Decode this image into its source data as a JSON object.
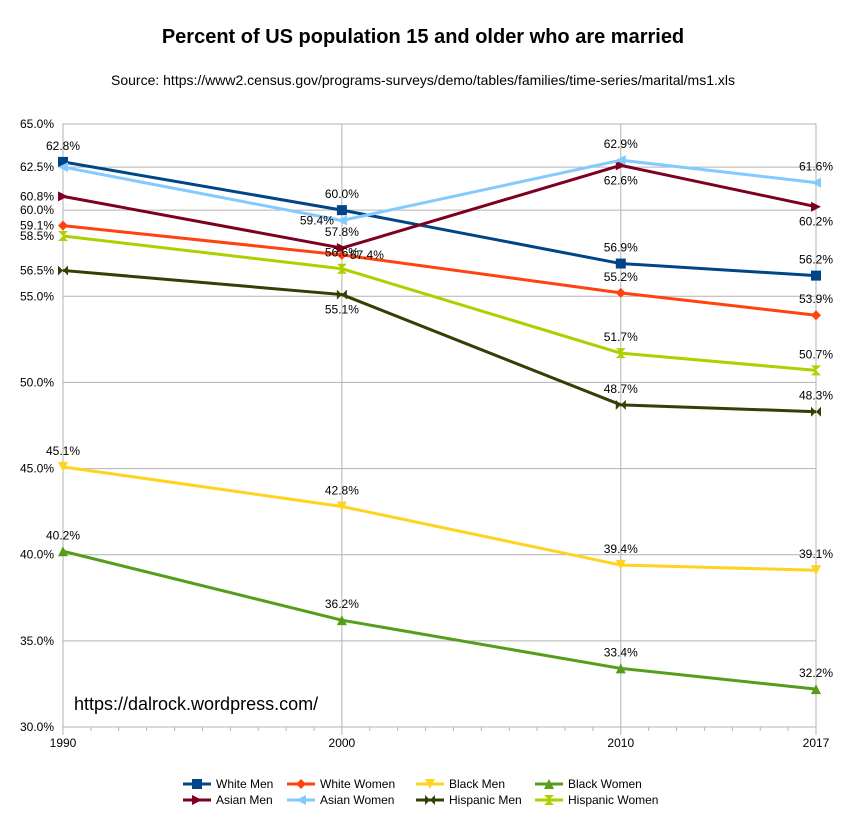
{
  "chart_data": {
    "type": "line",
    "title": "Percent of US population 15 and older who are married",
    "subtitle": "Source:  https://www2.census.gov/programs-surveys/demo/tables/families/time-series/marital/ms1.xls",
    "watermark": "https://dalrock.wordpress.com/",
    "xlabel": "",
    "ylabel": "",
    "x": [
      1990,
      2000,
      2010,
      2017
    ],
    "x_tick_labels": [
      "1990",
      "2000",
      "2010",
      "2017"
    ],
    "xlim": [
      1990,
      2017
    ],
    "ylim": [
      30,
      65
    ],
    "y_ticks": [
      30,
      35,
      40,
      45,
      50,
      55,
      60,
      62.5,
      65
    ],
    "y_tick_labels": [
      "30.0%",
      "35.0%",
      "40.0%",
      "45.0%",
      "50.0%",
      "55.0%",
      "60.0%",
      "62.5%",
      "65.0%"
    ],
    "extra_y_labels": [
      {
        "value": 60.8,
        "text": "60.8%"
      },
      {
        "value": 59.1,
        "text": "59.1%"
      },
      {
        "value": 58.5,
        "text": "58.5%"
      },
      {
        "value": 56.5,
        "text": "56.5%"
      }
    ],
    "grid": true,
    "legend_position": "bottom",
    "series": [
      {
        "name": "White Men",
        "color": "#004586",
        "marker": "square",
        "values": [
          62.8,
          60.0,
          56.9,
          56.2
        ],
        "labels": [
          "62.8%",
          "60.0%",
          "56.9%",
          "56.2%"
        ],
        "label_pos": [
          "above",
          "above",
          "above",
          "above"
        ]
      },
      {
        "name": "White Women",
        "color": "#ff420e",
        "marker": "diamond",
        "values": [
          59.1,
          57.4,
          55.2,
          53.9
        ],
        "labels": [
          "",
          "57.4%",
          "55.2%",
          "53.9%"
        ],
        "label_pos": [
          "none",
          "right",
          "above",
          "above"
        ]
      },
      {
        "name": "Black Men",
        "color": "#ffd320",
        "marker": "triangle-down",
        "values": [
          45.1,
          42.8,
          39.4,
          39.1
        ],
        "labels": [
          "45.1%",
          "42.8%",
          "39.4%",
          "39.1%"
        ],
        "label_pos": [
          "above",
          "above",
          "above",
          "above"
        ]
      },
      {
        "name": "Black Women",
        "color": "#579d1c",
        "marker": "triangle-up",
        "values": [
          40.2,
          36.2,
          33.4,
          32.2
        ],
        "labels": [
          "40.2%",
          "36.2%",
          "33.4%",
          "32.2%"
        ],
        "label_pos": [
          "above",
          "above",
          "above",
          "above"
        ]
      },
      {
        "name": "Asian Men",
        "color": "#7e0021",
        "marker": "arrow-right",
        "values": [
          60.8,
          57.8,
          62.6,
          60.2
        ],
        "labels": [
          "",
          "57.8%",
          "62.6%",
          "60.2%"
        ],
        "label_pos": [
          "none",
          "above",
          "below",
          "below"
        ]
      },
      {
        "name": "Asian Women",
        "color": "#83caff",
        "marker": "arrow-left",
        "values": [
          62.5,
          59.4,
          62.9,
          61.6
        ],
        "labels": [
          "",
          "59.4%",
          "62.9%",
          "61.6%"
        ],
        "label_pos": [
          "none",
          "left",
          "above",
          "above"
        ]
      },
      {
        "name": "Hispanic Men",
        "color": "#314004",
        "marker": "bowtie",
        "values": [
          56.5,
          55.1,
          48.7,
          48.3
        ],
        "labels": [
          "",
          "55.1%",
          "48.7%",
          "48.3%"
        ],
        "label_pos": [
          "none",
          "below",
          "above",
          "above"
        ]
      },
      {
        "name": "Hispanic Women",
        "color": "#aecf00",
        "marker": "hourglass",
        "values": [
          58.5,
          56.6,
          51.7,
          50.7
        ],
        "labels": [
          "",
          "56.6%",
          "51.7%",
          "50.7%"
        ],
        "label_pos": [
          "none",
          "above",
          "above",
          "above"
        ]
      }
    ]
  }
}
